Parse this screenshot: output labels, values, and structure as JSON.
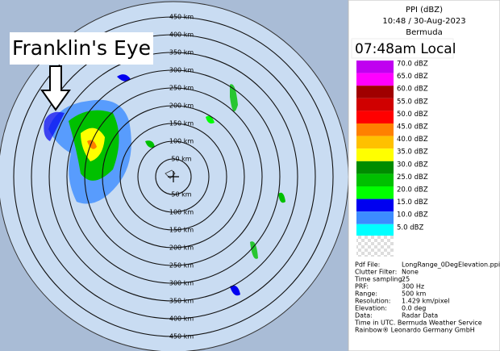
{
  "annotation": "Franklin's Eye",
  "range_rings": [
    {
      "value": 50,
      "label": "50 km"
    },
    {
      "value": 100,
      "label": "100 km"
    },
    {
      "value": 150,
      "label": "150 km"
    },
    {
      "value": 200,
      "label": "200 km"
    },
    {
      "value": 250,
      "label": "250 km"
    },
    {
      "value": 300,
      "label": "300 km"
    },
    {
      "value": 350,
      "label": "350 km"
    },
    {
      "value": 400,
      "label": "400 km"
    },
    {
      "value": 450,
      "label": "450 km"
    }
  ],
  "header": {
    "title": "PPI (dBZ)",
    "time": "10:48 / 30-Aug-2023",
    "site": "Bermuda",
    "local_time": "07:48am Local"
  },
  "legend": [
    {
      "value": 70,
      "label": "70.0 dBZ",
      "color": "#c000f0"
    },
    {
      "value": 65,
      "label": "65.0 dBZ",
      "color": "#ff00ff"
    },
    {
      "value": 60,
      "label": "60.0 dBZ",
      "color": "#a00000"
    },
    {
      "value": 55,
      "label": "55.0 dBZ",
      "color": "#d00000"
    },
    {
      "value": 50,
      "label": "50.0 dBZ",
      "color": "#ff0000"
    },
    {
      "value": 45,
      "label": "45.0 dBZ",
      "color": "#ff8000"
    },
    {
      "value": 40,
      "label": "40.0 dBZ",
      "color": "#ffc000"
    },
    {
      "value": 35,
      "label": "35.0 dBZ",
      "color": "#ffff00"
    },
    {
      "value": 30,
      "label": "30.0 dBZ",
      "color": "#008c00"
    },
    {
      "value": 25,
      "label": "25.0 dBZ",
      "color": "#00c000"
    },
    {
      "value": 20,
      "label": "20.0 dBZ",
      "color": "#00ff00"
    },
    {
      "value": 15,
      "label": "15.0 dBZ",
      "color": "#0000f0"
    },
    {
      "value": 10,
      "label": "10.0 dBZ",
      "color": "#3c8cff"
    },
    {
      "value": 5,
      "label": "5.0 dBZ",
      "color": "#00ffff"
    }
  ],
  "info": [
    [
      "Pdf File:",
      "LongRange_0DegElevation.ppi"
    ],
    [
      "Clutter Filter:",
      "None"
    ],
    [
      "Time sampling:",
      "25"
    ],
    [
      "PRF:",
      "300 Hz"
    ],
    [
      "Range:",
      "500 km"
    ],
    [
      "Resolution:",
      "1.429 km/pixel"
    ],
    [
      "Elevation:",
      "0.0 deg"
    ],
    [
      "Data:",
      "Radar Data"
    ]
  ],
  "footer": [
    "Time in UTC. Bermuda Weather Service",
    "Rainbow® Leonardo Germany GmbH"
  ]
}
